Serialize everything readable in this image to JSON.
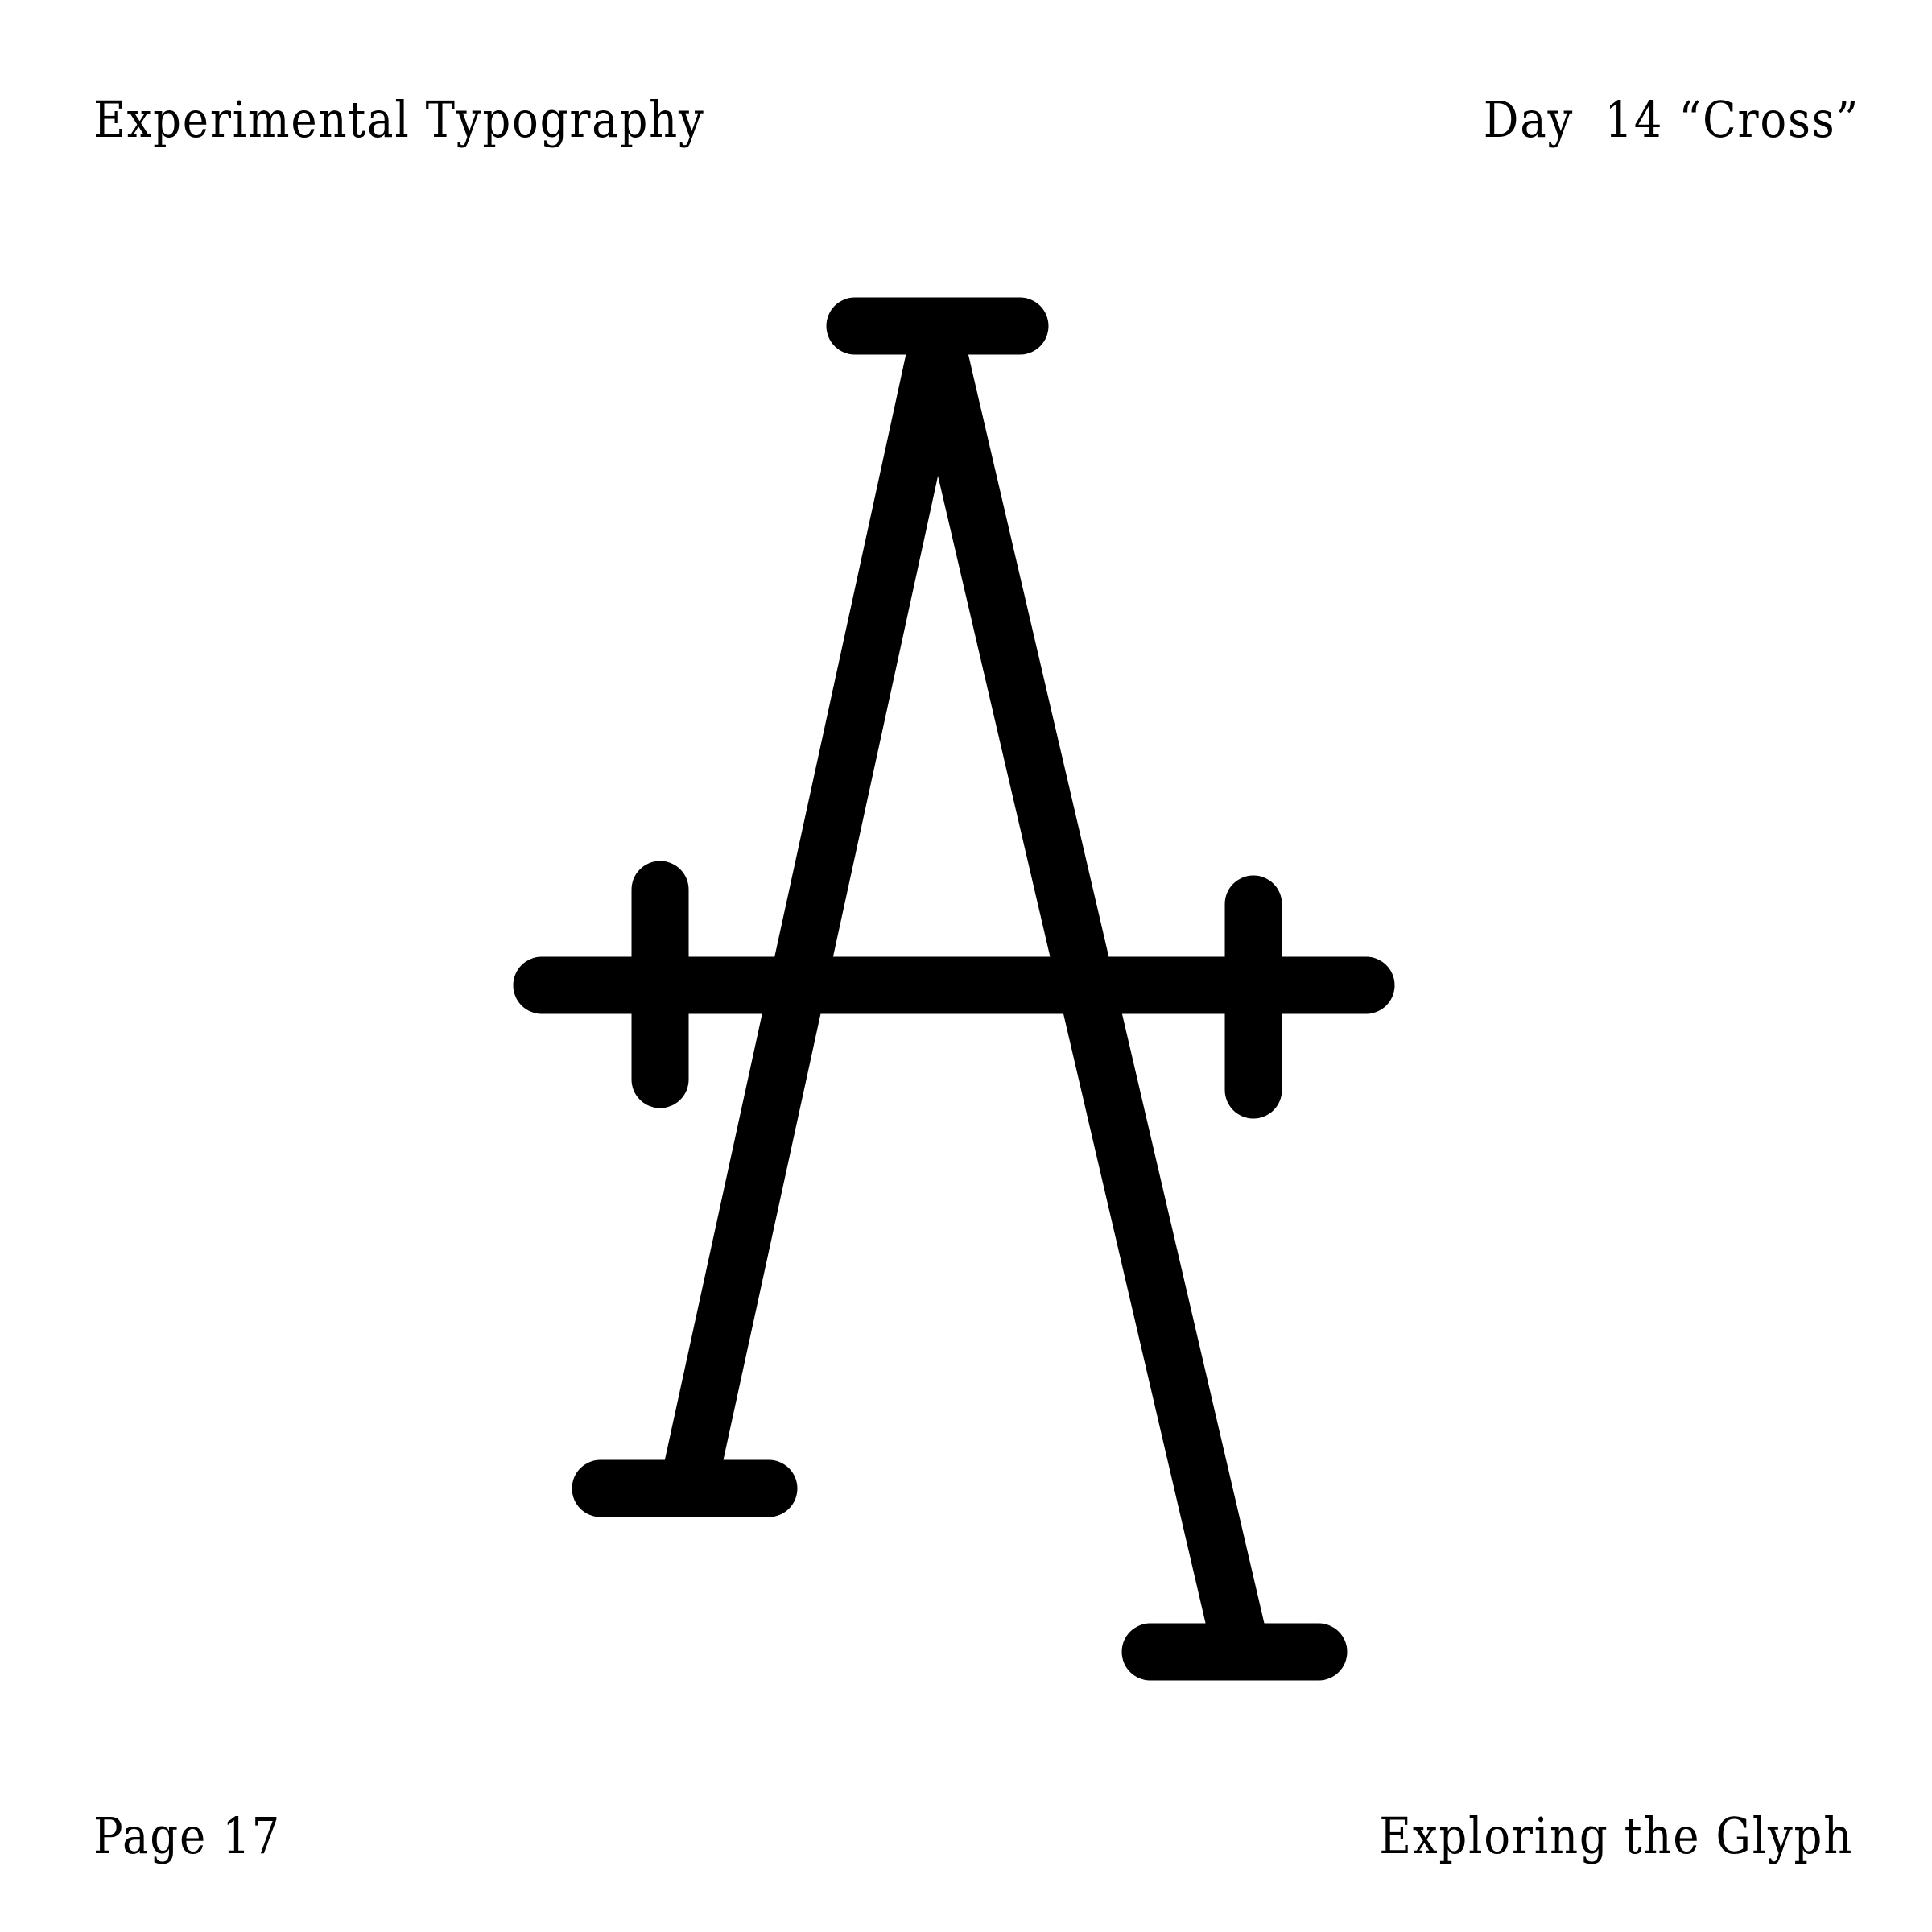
{
  "header": {
    "left_text": "Experimental Typography",
    "right_text": "Day  14 “Cross”"
  },
  "footer": {
    "left_text": "Page 17",
    "right_text": "Exploring the Glyph"
  },
  "glyph": {
    "letter": "A",
    "ink_color": "#000000",
    "background_color": "#ffffff"
  }
}
